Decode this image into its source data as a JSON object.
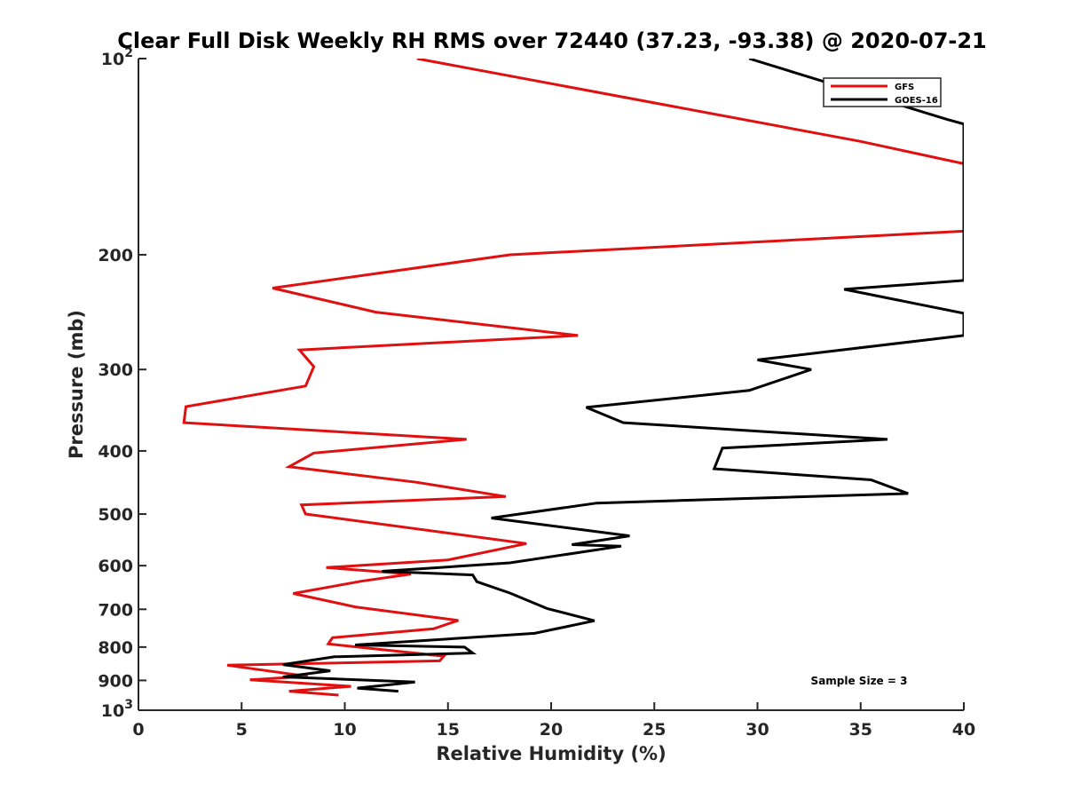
{
  "chart_data": {
    "type": "line",
    "title": "Clear Full Disk Weekly RH RMS over 72440 (37.23, -93.38) @ 2020-07-21",
    "xlabel": "Relative Humidity (%)",
    "ylabel": "Pressure (mb)",
    "xlim": [
      0,
      40
    ],
    "ylim": [
      100,
      1000
    ],
    "y_scale": "log",
    "y_reversed": true,
    "grid": false,
    "x_ticks": [
      0,
      5,
      10,
      15,
      20,
      25,
      30,
      35,
      40
    ],
    "x_tick_labels": [
      "0",
      "5",
      "10",
      "15",
      "20",
      "25",
      "30",
      "35",
      "40"
    ],
    "y_ticks": [
      100,
      200,
      300,
      400,
      500,
      600,
      700,
      800,
      900,
      1000
    ],
    "y_tick_labels": [
      {
        "base": "10",
        "exp": "2"
      },
      {
        "base": "200",
        "exp": ""
      },
      {
        "base": "300",
        "exp": ""
      },
      {
        "base": "400",
        "exp": ""
      },
      {
        "base": "500",
        "exp": ""
      },
      {
        "base": "600",
        "exp": ""
      },
      {
        "base": "700",
        "exp": ""
      },
      {
        "base": "800",
        "exp": ""
      },
      {
        "base": "900",
        "exp": ""
      },
      {
        "base": "10",
        "exp": "3"
      }
    ],
    "legend_position": "top-right",
    "annotation": "Sample Size = 3",
    "series": [
      {
        "name": "GFS",
        "color": "#e01010",
        "x": [
          13.5,
          35.0,
          40.0,
          40.0,
          18.0,
          6.5,
          11.5,
          21.3,
          7.8,
          8.5,
          8.1,
          2.3,
          2.2,
          15.9,
          8.5,
          7.3,
          13.5,
          17.8,
          7.9,
          8.1,
          18.8,
          15.0,
          9.1,
          13.2,
          10.8,
          7.5,
          10.5,
          15.5,
          14.3,
          9.4,
          9.2,
          14.8,
          14.6,
          4.3,
          8.2,
          5.4,
          10.3,
          7.3,
          9.7
        ],
        "y": [
          100,
          134,
          145,
          184,
          200,
          225,
          245,
          266,
          280,
          297,
          318,
          342,
          362,
          384,
          403,
          423,
          447,
          470,
          484,
          500,
          555,
          588,
          604,
          618,
          634,
          662,
          694,
          728,
          750,
          774,
          791,
          826,
          840,
          853,
          887,
          898,
          919,
          935,
          948
        ]
      },
      {
        "name": "GOES-16",
        "color": "#000000",
        "x": [
          29.6,
          39.2,
          40.0,
          40.0,
          34.2,
          40.0,
          40.0,
          30.0,
          32.6,
          29.6,
          21.7,
          23.5,
          36.3,
          28.3,
          27.9,
          35.5,
          37.3,
          22.2,
          17.1,
          23.8,
          21.0,
          23.4,
          18.0,
          11.8,
          16.2,
          16.4,
          18.0,
          19.8,
          22.1,
          19.2,
          10.5,
          15.8,
          16.2,
          9.5,
          7.0,
          9.3,
          7.0,
          13.4,
          10.6,
          12.6
        ],
        "y": [
          100,
          124,
          126,
          219,
          226,
          246,
          266,
          290,
          300,
          323,
          343,
          362,
          384,
          396,
          426,
          443,
          465,
          481,
          507,
          540,
          557,
          560,
          594,
          612,
          620,
          635,
          661,
          698,
          729,
          762,
          794,
          800,
          817,
          828,
          851,
          870,
          889,
          905,
          925,
          935
        ]
      }
    ]
  }
}
